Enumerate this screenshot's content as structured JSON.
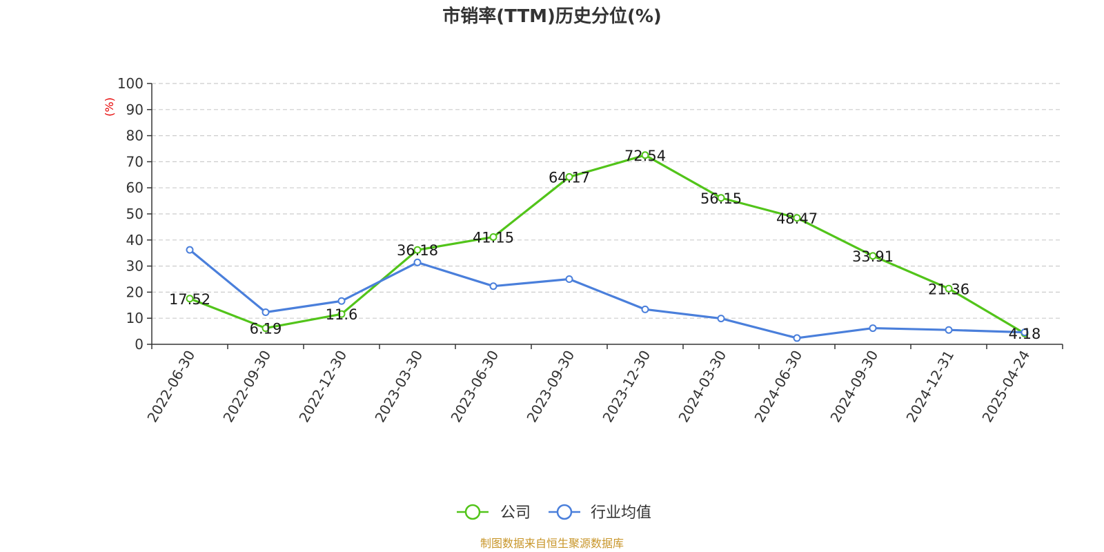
{
  "chart_data": {
    "type": "line",
    "title": "市销率(TTM)历史分位(%)",
    "ylabel": "(%)",
    "xlabel": "",
    "categories": [
      "2022-06-30",
      "2022-09-30",
      "2022-12-30",
      "2023-03-30",
      "2023-06-30",
      "2023-09-30",
      "2023-12-30",
      "2024-03-30",
      "2024-06-30",
      "2024-09-30",
      "2024-12-31",
      "2025-04-24"
    ],
    "ylim": [
      0,
      100
    ],
    "yticks": [
      0,
      10,
      20,
      30,
      40,
      50,
      60,
      70,
      80,
      90,
      100
    ],
    "grid": true,
    "legend_position": "bottom-center",
    "series": [
      {
        "name": "公司",
        "color": "#52c41a",
        "values": [
          17.52,
          6.19,
          11.6,
          36.18,
          41.15,
          64.17,
          72.54,
          56.15,
          48.47,
          33.91,
          21.36,
          4.18
        ],
        "labels": [
          "17.52",
          "6.19",
          "11.6",
          "36.18",
          "41.15",
          "64.17",
          "72.54",
          "56.15",
          "48.47",
          "33.91",
          "21.36",
          "4.18"
        ]
      },
      {
        "name": "行业均值",
        "color": "#4a7fdb",
        "values": [
          36.2,
          12.3,
          16.6,
          31.4,
          22.3,
          25.0,
          13.4,
          9.9,
          2.4,
          6.2,
          5.5,
          4.6
        ]
      }
    ]
  },
  "source_text": "制图数据来自恒生聚源数据库"
}
